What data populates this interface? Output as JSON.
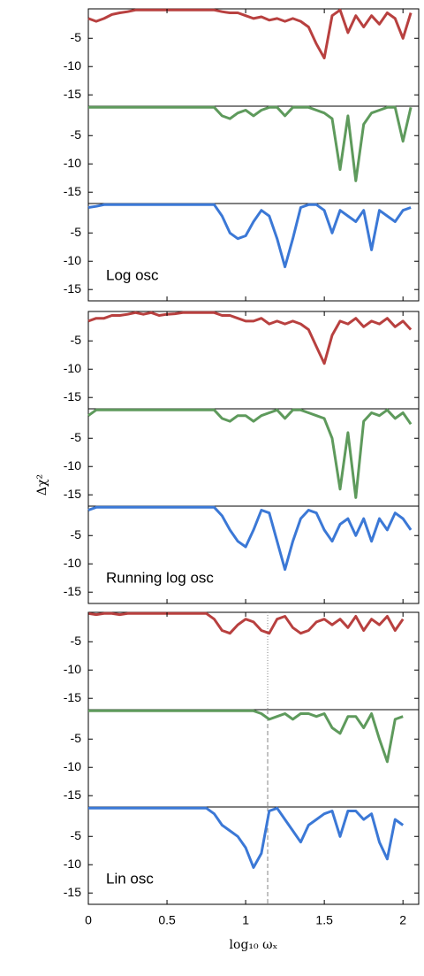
{
  "chart_data": [
    {
      "type": "line",
      "xlim": [
        0,
        2.1
      ],
      "ylim": [
        -17,
        0.2
      ],
      "yticks": [
        -5,
        -10,
        -15
      ],
      "x": [
        0,
        0.05,
        0.1,
        0.15,
        0.2,
        0.25,
        0.3,
        0.35,
        0.4,
        0.45,
        0.5,
        0.55,
        0.6,
        0.65,
        0.7,
        0.75,
        0.8,
        0.85,
        0.9,
        0.95,
        1,
        1.05,
        1.1,
        1.15,
        1.2,
        1.25,
        1.3,
        1.35,
        1.4,
        1.45,
        1.5,
        1.55,
        1.6,
        1.65,
        1.7,
        1.75,
        1.8,
        1.85,
        1.9,
        1.95,
        2,
        2.05
      ],
      "series": [
        {
          "color": "#b8403f",
          "values": [
            -1.5,
            -2,
            -1.5,
            -0.8,
            -0.5,
            -0.3,
            0,
            0,
            0,
            0,
            0,
            0,
            0,
            0,
            0,
            0,
            0,
            -0.3,
            -0.5,
            -0.5,
            -1,
            -1.5,
            -1.2,
            -1.8,
            -1.5,
            -2,
            -1.5,
            -2,
            -3,
            -6,
            -8.5,
            -1,
            0,
            -4,
            -1,
            -3,
            -1,
            -2.5,
            -0.5,
            -1.5,
            -5,
            -0.5
          ]
        }
      ]
    },
    {
      "type": "line",
      "xlim": [
        0,
        2.1
      ],
      "ylim": [
        -17,
        0.2
      ],
      "yticks": [
        -5,
        -10,
        -15
      ],
      "x": [
        0,
        0.05,
        0.1,
        0.15,
        0.2,
        0.25,
        0.3,
        0.35,
        0.4,
        0.45,
        0.5,
        0.55,
        0.6,
        0.65,
        0.7,
        0.75,
        0.8,
        0.85,
        0.9,
        0.95,
        1,
        1.05,
        1.1,
        1.15,
        1.2,
        1.25,
        1.3,
        1.35,
        1.4,
        1.45,
        1.5,
        1.55,
        1.6,
        1.65,
        1.7,
        1.75,
        1.8,
        1.85,
        1.9,
        1.95,
        2,
        2.05
      ],
      "series": [
        {
          "color": "#5e9a5c",
          "values": [
            0,
            0,
            0,
            0,
            0,
            0,
            0,
            0,
            0,
            0,
            0,
            0,
            0,
            0,
            0,
            0,
            0,
            -1.5,
            -2,
            -1,
            -0.5,
            -1.5,
            -0.5,
            0,
            0,
            -1.5,
            0,
            0,
            0,
            -0.5,
            -1,
            -2,
            -11,
            -1.5,
            -13,
            -3,
            -1,
            -0.5,
            0,
            0,
            -6,
            0
          ]
        }
      ]
    },
    {
      "type": "line",
      "xlim": [
        0,
        2.1
      ],
      "ylim": [
        -17,
        0.2
      ],
      "yticks": [
        -5,
        -10,
        -15
      ],
      "annotation": "Log osc",
      "x": [
        0,
        0.05,
        0.1,
        0.15,
        0.2,
        0.25,
        0.3,
        0.35,
        0.4,
        0.45,
        0.5,
        0.55,
        0.6,
        0.65,
        0.7,
        0.75,
        0.8,
        0.85,
        0.9,
        0.95,
        1,
        1.05,
        1.1,
        1.15,
        1.2,
        1.25,
        1.3,
        1.35,
        1.4,
        1.45,
        1.5,
        1.55,
        1.6,
        1.65,
        1.7,
        1.75,
        1.8,
        1.85,
        1.9,
        1.95,
        2,
        2.05
      ],
      "series": [
        {
          "color": "#3b78d6",
          "values": [
            -0.5,
            -0.3,
            0,
            0,
            0,
            0,
            0,
            0,
            0,
            0,
            0,
            0,
            0,
            0,
            0,
            0,
            0,
            -2,
            -5,
            -6,
            -5.5,
            -3,
            -1,
            -2,
            -6,
            -11,
            -6,
            -0.5,
            0,
            0,
            -1,
            -5,
            -1,
            -2,
            -3,
            -1,
            -8,
            -1,
            -2,
            -3,
            -1,
            -0.5
          ]
        }
      ]
    },
    {
      "type": "line",
      "xlim": [
        0,
        2.1
      ],
      "ylim": [
        -17,
        0.2
      ],
      "yticks": [
        -5,
        -10,
        -15
      ],
      "x": [
        0,
        0.05,
        0.1,
        0.15,
        0.2,
        0.25,
        0.3,
        0.35,
        0.4,
        0.45,
        0.5,
        0.55,
        0.6,
        0.65,
        0.7,
        0.75,
        0.8,
        0.85,
        0.9,
        0.95,
        1,
        1.05,
        1.1,
        1.15,
        1.2,
        1.25,
        1.3,
        1.35,
        1.4,
        1.45,
        1.5,
        1.55,
        1.6,
        1.65,
        1.7,
        1.75,
        1.8,
        1.85,
        1.9,
        1.95,
        2,
        2.05
      ],
      "series": [
        {
          "color": "#b8403f",
          "values": [
            -1.5,
            -1,
            -1,
            -0.5,
            -0.5,
            -0.3,
            0,
            -0.3,
            0,
            -0.5,
            -0.3,
            -0.2,
            0,
            0,
            0,
            0,
            0,
            -0.5,
            -0.5,
            -1,
            -1.5,
            -1.5,
            -1,
            -2,
            -1.5,
            -2,
            -1.5,
            -2,
            -3,
            -6,
            -9,
            -4,
            -1.5,
            -2,
            -1,
            -2.5,
            -1.5,
            -2,
            -1,
            -2.5,
            -1.5,
            -3
          ]
        }
      ]
    },
    {
      "type": "line",
      "xlim": [
        0,
        2.1
      ],
      "ylim": [
        -17,
        0.2
      ],
      "yticks": [
        -5,
        -10,
        -15
      ],
      "ylabel": "Δχ²",
      "x": [
        0,
        0.05,
        0.1,
        0.15,
        0.2,
        0.25,
        0.3,
        0.35,
        0.4,
        0.45,
        0.5,
        0.55,
        0.6,
        0.65,
        0.7,
        0.75,
        0.8,
        0.85,
        0.9,
        0.95,
        1,
        1.05,
        1.1,
        1.15,
        1.2,
        1.25,
        1.3,
        1.35,
        1.4,
        1.45,
        1.5,
        1.55,
        1.6,
        1.65,
        1.7,
        1.75,
        1.8,
        1.85,
        1.9,
        1.95,
        2,
        2.05
      ],
      "series": [
        {
          "color": "#5e9a5c",
          "values": [
            -1,
            0,
            0,
            0,
            0,
            0,
            0,
            0,
            0,
            0,
            0,
            0,
            0,
            0,
            0,
            0,
            0,
            -1.5,
            -2,
            -1,
            -1,
            -2,
            -1,
            -0.5,
            0,
            -1.5,
            0,
            0,
            -0.5,
            -1,
            -1.5,
            -5,
            -14,
            -4,
            -15.5,
            -2,
            -0.5,
            -1,
            0,
            -1.5,
            -0.5,
            -2.5
          ]
        }
      ]
    },
    {
      "type": "line",
      "xlim": [
        0,
        2.1
      ],
      "ylim": [
        -17,
        0.2
      ],
      "yticks": [
        -5,
        -10,
        -15
      ],
      "annotation": "Running log osc",
      "x": [
        0,
        0.05,
        0.1,
        0.15,
        0.2,
        0.25,
        0.3,
        0.35,
        0.4,
        0.45,
        0.5,
        0.55,
        0.6,
        0.65,
        0.7,
        0.75,
        0.8,
        0.85,
        0.9,
        0.95,
        1,
        1.05,
        1.1,
        1.15,
        1.2,
        1.25,
        1.3,
        1.35,
        1.4,
        1.45,
        1.5,
        1.55,
        1.6,
        1.65,
        1.7,
        1.75,
        1.8,
        1.85,
        1.9,
        1.95,
        2,
        2.05
      ],
      "series": [
        {
          "color": "#3b78d6",
          "values": [
            -0.5,
            0,
            0,
            0,
            0,
            0,
            0,
            0,
            0,
            0,
            0,
            0,
            0,
            0,
            0,
            0,
            0,
            -1.5,
            -4,
            -6,
            -7,
            -4,
            -0.5,
            -1,
            -6,
            -11,
            -6,
            -2,
            -0.5,
            -1,
            -4,
            -6,
            -3,
            -2,
            -5,
            -2,
            -6,
            -2,
            -4,
            -1,
            -2,
            -4
          ]
        }
      ]
    },
    {
      "type": "line",
      "xlim": [
        0,
        2.1
      ],
      "ylim": [
        -17,
        0.2
      ],
      "yticks": [
        -5,
        -10,
        -15
      ],
      "vline": 1.14,
      "x": [
        0,
        0.05,
        0.1,
        0.15,
        0.2,
        0.25,
        0.3,
        0.35,
        0.4,
        0.45,
        0.5,
        0.55,
        0.6,
        0.65,
        0.7,
        0.75,
        0.8,
        0.85,
        0.9,
        0.95,
        1,
        1.05,
        1.1,
        1.15,
        1.2,
        1.25,
        1.3,
        1.35,
        1.4,
        1.45,
        1.5,
        1.55,
        1.6,
        1.65,
        1.7,
        1.75,
        1.8,
        1.85,
        1.9,
        1.95,
        2,
        2.05
      ],
      "series": [
        {
          "color": "#b8403f",
          "values": [
            0,
            -0.2,
            0,
            0,
            -0.2,
            0,
            0,
            0,
            0,
            0,
            0,
            0,
            0,
            0,
            0,
            0,
            -1,
            -3,
            -3.5,
            -2,
            -1,
            -1.5,
            -3,
            -3.5,
            -1,
            -0.5,
            -2.5,
            -3.5,
            -3,
            -1.5,
            -1,
            -2,
            -1,
            -2.5,
            -0.5,
            -3,
            -1,
            -2,
            -0.5,
            -3,
            -1,
            null
          ]
        }
      ]
    },
    {
      "type": "line",
      "xlim": [
        0,
        2.1
      ],
      "ylim": [
        -17,
        0.2
      ],
      "yticks": [
        -5,
        -10,
        -15
      ],
      "vline": 1.14,
      "x": [
        0,
        0.05,
        0.1,
        0.15,
        0.2,
        0.25,
        0.3,
        0.35,
        0.4,
        0.45,
        0.5,
        0.55,
        0.6,
        0.65,
        0.7,
        0.75,
        0.8,
        0.85,
        0.9,
        0.95,
        1,
        1.05,
        1.1,
        1.15,
        1.2,
        1.25,
        1.3,
        1.35,
        1.4,
        1.45,
        1.5,
        1.55,
        1.6,
        1.65,
        1.7,
        1.75,
        1.8,
        1.85,
        1.9,
        1.95,
        2,
        2.05
      ],
      "series": [
        {
          "color": "#5e9a5c",
          "values": [
            0,
            0,
            0,
            0,
            0,
            0,
            0,
            0,
            0,
            0,
            0,
            0,
            0,
            0,
            0,
            0,
            0,
            0,
            0,
            0,
            0,
            0,
            -0.5,
            -1.5,
            -1,
            -0.5,
            -1.5,
            -0.5,
            -0.5,
            -1,
            -0.5,
            -3,
            -4,
            -1,
            -1,
            -3,
            -0.5,
            -5,
            -9,
            -1.5,
            -1,
            null
          ]
        }
      ]
    },
    {
      "type": "line",
      "xlim": [
        0,
        2.1
      ],
      "ylim": [
        -17,
        0.2
      ],
      "yticks": [
        -5,
        -10,
        -15
      ],
      "vline": 1.14,
      "annotation": "Lin osc",
      "xticks": [
        0,
        0.5,
        1,
        1.5,
        2
      ],
      "xlabel": "log₁₀ ωₓ",
      "x": [
        0,
        0.05,
        0.1,
        0.15,
        0.2,
        0.25,
        0.3,
        0.35,
        0.4,
        0.45,
        0.5,
        0.55,
        0.6,
        0.65,
        0.7,
        0.75,
        0.8,
        0.85,
        0.9,
        0.95,
        1,
        1.05,
        1.1,
        1.15,
        1.2,
        1.25,
        1.3,
        1.35,
        1.4,
        1.45,
        1.5,
        1.55,
        1.6,
        1.65,
        1.7,
        1.75,
        1.8,
        1.85,
        1.9,
        1.95,
        2,
        2.05
      ],
      "series": [
        {
          "color": "#3b78d6",
          "values": [
            0,
            0,
            0,
            0,
            0,
            0,
            0,
            0,
            0,
            0,
            0,
            0,
            0,
            0,
            0,
            0,
            -1,
            -3,
            -4,
            -5,
            -7,
            -10.5,
            -8,
            -0.5,
            0,
            -2,
            -4,
            -6,
            -3,
            -2,
            -1,
            -0.5,
            -5,
            -0.5,
            -0.5,
            -2,
            -1,
            -6,
            -9,
            -2,
            -3,
            null
          ]
        }
      ]
    }
  ]
}
